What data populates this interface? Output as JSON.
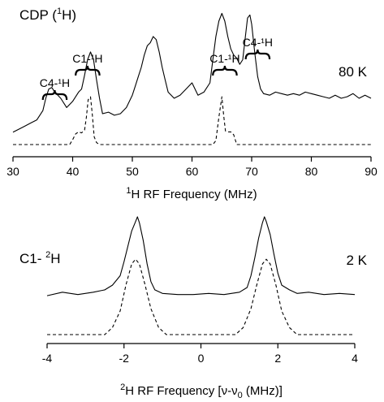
{
  "colors": {
    "ink": "#000000",
    "background": "#ffffff"
  },
  "chart_data": [
    {
      "type": "line",
      "panel_label": "CDP (¹H)",
      "temperature_label": "80 K",
      "xlabel": "¹H RF Frequency (MHz)",
      "xlim": [
        30,
        90
      ],
      "x_ticks": [
        30,
        40,
        50,
        60,
        70,
        80,
        90
      ],
      "annotations": [
        {
          "text": "C4-¹H",
          "x_range": [
            35,
            39
          ]
        },
        {
          "text": "C1-¹H",
          "x_range": [
            40.5,
            44.5
          ]
        },
        {
          "text": "C1-¹H",
          "x_range": [
            63.5,
            67.5
          ]
        },
        {
          "text": "C4-¹H",
          "x_range": [
            69,
            73
          ]
        }
      ],
      "series": [
        {
          "style": "solid",
          "x": [
            30,
            31,
            32,
            33,
            34,
            35,
            35.5,
            36,
            36.5,
            37,
            38,
            39,
            40,
            41,
            41.5,
            42,
            42.5,
            43,
            43.5,
            44,
            44.5,
            45,
            46,
            47,
            48,
            49,
            50,
            50.5,
            51,
            51.5,
            52,
            52.5,
            53,
            53.5,
            54,
            54.5,
            55,
            55.5,
            56,
            57,
            58,
            59,
            60,
            61,
            62,
            63,
            63.5,
            64,
            64.5,
            65,
            65.5,
            66,
            66.5,
            67,
            67.5,
            68,
            68.5,
            69,
            69.3,
            69.7,
            70,
            70.5,
            71,
            71.5,
            72,
            73,
            74,
            75,
            76,
            77,
            78,
            79,
            80,
            81,
            82,
            83,
            84,
            85,
            86,
            87,
            88,
            89,
            90
          ],
          "y": [
            0.08,
            0.1,
            0.12,
            0.14,
            0.16,
            0.22,
            0.3,
            0.36,
            0.37,
            0.34,
            0.3,
            0.24,
            0.28,
            0.34,
            0.36,
            0.45,
            0.55,
            0.6,
            0.55,
            0.42,
            0.3,
            0.2,
            0.21,
            0.19,
            0.2,
            0.24,
            0.32,
            0.38,
            0.44,
            0.5,
            0.58,
            0.64,
            0.66,
            0.7,
            0.68,
            0.6,
            0.5,
            0.42,
            0.34,
            0.3,
            0.32,
            0.36,
            0.4,
            0.32,
            0.34,
            0.4,
            0.55,
            0.7,
            0.8,
            0.85,
            0.8,
            0.7,
            0.62,
            0.58,
            0.56,
            0.52,
            0.55,
            0.72,
            0.82,
            0.84,
            0.78,
            0.6,
            0.44,
            0.36,
            0.33,
            0.32,
            0.34,
            0.33,
            0.32,
            0.33,
            0.32,
            0.34,
            0.33,
            0.32,
            0.31,
            0.3,
            0.32,
            0.3,
            0.31,
            0.33,
            0.3,
            0.32,
            0.3
          ]
        },
        {
          "style": "dashed",
          "x": [
            30,
            39.5,
            40,
            40.5,
            41,
            41.5,
            42,
            42.3,
            42.6,
            43,
            43.3,
            43.6,
            44,
            44.5,
            63.5,
            64,
            64.5,
            65,
            65.3,
            65.6,
            66,
            66.5,
            67,
            67.5,
            90
          ],
          "y": [
            0,
            0,
            0.05,
            0.11,
            0.13,
            0.12,
            0.15,
            0.28,
            0.46,
            0.49,
            0.3,
            0.08,
            0.02,
            0,
            0,
            0.04,
            0.28,
            0.49,
            0.3,
            0.14,
            0.13,
            0.13,
            0.1,
            0,
            0
          ]
        }
      ]
    },
    {
      "type": "line",
      "panel_label": "C1- ²H",
      "temperature_label": "2 K",
      "xlabel": "²H RF Frequency [ν-ν₀ (MHz)]",
      "xlim": [
        -4,
        4
      ],
      "x_ticks": [
        -4,
        -2,
        0,
        2,
        4
      ],
      "series": [
        {
          "style": "solid",
          "x": [
            -4,
            -3.6,
            -3.2,
            -2.8,
            -2.5,
            -2.3,
            -2.1,
            -2.0,
            -1.9,
            -1.8,
            -1.7,
            -1.65,
            -1.6,
            -1.5,
            -1.4,
            -1.3,
            -1.2,
            -1.0,
            -0.6,
            -0.2,
            0.2,
            0.6,
            1.0,
            1.2,
            1.3,
            1.4,
            1.5,
            1.6,
            1.65,
            1.7,
            1.8,
            1.9,
            2.0,
            2.1,
            2.3,
            2.5,
            2.8,
            3.2,
            3.6,
            4
          ],
          "y": [
            0.33,
            0.36,
            0.34,
            0.36,
            0.38,
            0.42,
            0.5,
            0.62,
            0.75,
            0.88,
            0.96,
            1.0,
            0.95,
            0.8,
            0.6,
            0.45,
            0.38,
            0.35,
            0.34,
            0.34,
            0.35,
            0.34,
            0.36,
            0.4,
            0.5,
            0.65,
            0.82,
            0.95,
            1.0,
            0.96,
            0.85,
            0.68,
            0.52,
            0.42,
            0.38,
            0.35,
            0.36,
            0.34,
            0.35,
            0.34
          ]
        },
        {
          "style": "dashed",
          "x": [
            -4,
            -2.5,
            -2.3,
            -2.1,
            -1.95,
            -1.8,
            -1.7,
            -1.6,
            -1.45,
            -1.3,
            -1.1,
            -0.9,
            0.9,
            1.1,
            1.3,
            1.45,
            1.6,
            1.7,
            1.8,
            1.95,
            2.1,
            2.3,
            2.5,
            4
          ],
          "y": [
            0,
            0,
            0.06,
            0.2,
            0.42,
            0.6,
            0.64,
            0.6,
            0.42,
            0.22,
            0.06,
            0,
            0,
            0.06,
            0.22,
            0.42,
            0.6,
            0.64,
            0.6,
            0.42,
            0.2,
            0.06,
            0,
            0
          ]
        }
      ]
    }
  ]
}
